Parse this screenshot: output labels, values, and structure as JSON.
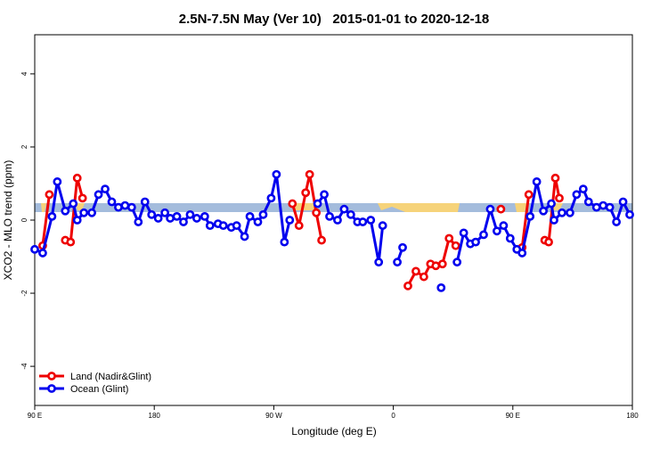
{
  "chart_data": {
    "type": "line",
    "title": "2.5N-7.5N May (Ver 10)   2015-01-01 to 2020-12-18",
    "x_label": "Longitude (deg E)",
    "y_label": "XCO2 - MLO trend (ppm)",
    "xlim": [
      90,
      540
    ],
    "ylim": [
      -5.07,
      5.07
    ],
    "xticks": [
      {
        "value": 90,
        "label": "90 E"
      },
      180,
      {
        "value": 270,
        "label": "90 W"
      },
      {
        "value": 360,
        "label": "0"
      },
      {
        "value": 450,
        "label": "90 E"
      },
      {
        "value": 540,
        "label": "180"
      }
    ],
    "yticks": [
      -4,
      -2,
      0,
      2,
      4
    ],
    "legend": "bottom-left",
    "series": [
      {
        "name": "Land (Nadir&Glint)",
        "color": "#ee0000",
        "x": [
          96,
          101,
          null,
          113,
          117,
          122,
          126,
          null,
          284,
          289,
          294,
          297,
          302,
          306,
          null,
          371,
          377,
          383,
          388,
          392,
          397,
          402,
          407,
          null,
          441,
          null,
          457,
          462,
          null,
          474,
          477,
          482,
          485
        ],
        "values": [
          -0.7,
          0.7,
          null,
          -0.55,
          -0.6,
          1.15,
          0.6,
          null,
          0.45,
          -0.15,
          0.75,
          1.25,
          0.2,
          -0.55,
          null,
          -1.8,
          -1.4,
          -1.55,
          -1.2,
          -1.25,
          -1.2,
          -0.5,
          -0.7,
          null,
          0.3,
          null,
          -0.75,
          0.7,
          null,
          -0.55,
          -0.6,
          1.15,
          0.6
        ]
      },
      {
        "name": "Ocean (Glint)",
        "color": "#0000ee",
        "x": [
          90,
          96,
          103,
          107,
          113,
          119,
          122,
          127,
          133,
          138,
          143,
          148,
          153,
          158,
          163,
          168,
          173,
          178,
          183,
          188,
          192,
          197,
          202,
          207,
          212,
          218,
          222,
          228,
          232,
          238,
          242,
          248,
          252,
          258,
          262,
          268,
          272,
          278,
          282,
          null,
          303,
          308,
          312,
          318,
          323,
          328,
          333,
          337,
          343,
          349,
          352,
          null,
          363,
          367,
          null,
          396,
          null,
          408,
          413,
          418,
          422,
          428,
          433,
          438,
          443,
          448,
          453,
          457,
          463,
          468,
          473,
          479,
          481,
          487,
          493,
          498,
          503,
          507,
          513,
          518,
          523,
          528,
          533,
          538
        ],
        "values": [
          -0.8,
          -0.9,
          0.1,
          1.05,
          0.25,
          0.45,
          0.0,
          0.2,
          0.2,
          0.7,
          0.85,
          0.5,
          0.35,
          0.4,
          0.35,
          -0.05,
          0.5,
          0.15,
          0.05,
          0.2,
          0.05,
          0.1,
          -0.05,
          0.15,
          0.05,
          0.1,
          -0.15,
          -0.1,
          -0.15,
          -0.2,
          -0.15,
          -0.45,
          0.1,
          -0.05,
          0.15,
          0.6,
          1.25,
          -0.6,
          0.0,
          null,
          0.45,
          0.7,
          0.1,
          0.0,
          0.3,
          0.15,
          -0.05,
          -0.05,
          0.0,
          -1.15,
          -0.15,
          null,
          -1.15,
          -0.75,
          null,
          -1.85,
          null,
          -1.15,
          -0.35,
          -0.65,
          -0.6,
          -0.4,
          0.3,
          -0.3,
          -0.15,
          -0.5,
          -0.8,
          -0.9,
          0.1,
          1.05,
          0.25,
          0.45,
          0.0,
          0.2,
          0.2,
          0.7,
          0.85,
          0.5,
          0.35,
          0.4,
          0.35,
          -0.05,
          0.5,
          0.15
        ]
      }
    ]
  }
}
